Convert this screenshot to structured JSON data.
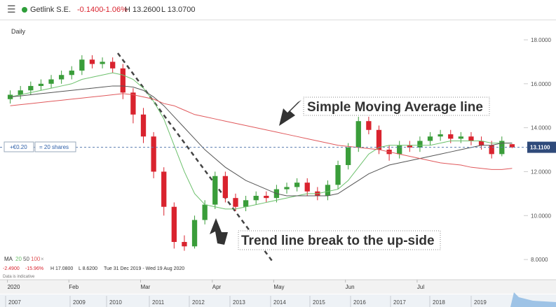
{
  "header": {
    "symbol": "Getlink S.E.",
    "change": "-0.1400",
    "change_pct": "-1.06%",
    "high": "H 13.2600",
    "low": "L 13.0700"
  },
  "chart_data": {
    "type": "candlestick",
    "interval": "Daily",
    "x": [
      0,
      1,
      2,
      3,
      4,
      5,
      6,
      7,
      8,
      9,
      10,
      11,
      12,
      13,
      14,
      15,
      16,
      17,
      18,
      19,
      20,
      21,
      22,
      23,
      24,
      25,
      26,
      27,
      28,
      29,
      30,
      31,
      32,
      33,
      34,
      35,
      36,
      37,
      38,
      39,
      40,
      41,
      42,
      43,
      44,
      45,
      46,
      47,
      48,
      49
    ],
    "open": [
      15.3,
      15.5,
      15.7,
      15.9,
      16.0,
      16.2,
      16.4,
      16.6,
      17.1,
      16.9,
      17.0,
      16.7,
      15.6,
      14.6,
      13.6,
      12.0,
      10.4,
      8.8,
      8.6,
      9.8,
      10.5,
      11.8,
      10.8,
      10.4,
      10.7,
      10.9,
      10.8,
      11.2,
      11.3,
      11.5,
      11.1,
      10.9,
      11.4,
      12.3,
      13.1,
      14.3,
      13.9,
      13.0,
      12.8,
      13.2,
      13.1,
      13.4,
      13.6,
      13.7,
      13.5,
      13.6,
      13.4,
      13.2,
      12.8,
      13.25
    ],
    "high": [
      15.7,
      15.9,
      16.1,
      16.2,
      16.4,
      16.6,
      16.8,
      17.3,
      17.3,
      17.2,
      17.2,
      16.9,
      15.8,
      14.9,
      13.8,
      12.2,
      10.6,
      9.1,
      10.0,
      10.7,
      12.0,
      12.0,
      11.0,
      10.9,
      11.1,
      11.1,
      11.4,
      11.5,
      11.7,
      11.7,
      11.3,
      11.6,
      12.5,
      13.3,
      14.5,
      14.5,
      14.1,
      13.2,
      13.4,
      13.4,
      13.6,
      13.8,
      13.9,
      13.9,
      13.8,
      13.8,
      13.6,
      13.4,
      13.6,
      13.26
    ],
    "low": [
      15.1,
      15.3,
      15.5,
      15.7,
      15.8,
      16.0,
      16.2,
      16.4,
      16.7,
      16.7,
      16.5,
      15.3,
      14.2,
      13.3,
      11.7,
      10.0,
      8.5,
      8.4,
      8.5,
      9.6,
      10.3,
      10.6,
      10.2,
      10.2,
      10.5,
      10.6,
      10.6,
      11.0,
      11.1,
      10.9,
      10.7,
      10.7,
      11.2,
      12.1,
      12.9,
      13.7,
      12.8,
      12.5,
      12.6,
      12.9,
      12.9,
      13.2,
      13.4,
      13.3,
      13.3,
      13.2,
      13.0,
      12.6,
      12.7,
      13.07
    ],
    "close": [
      15.5,
      15.7,
      15.9,
      16.0,
      16.2,
      16.4,
      16.6,
      17.1,
      16.9,
      17.0,
      16.7,
      15.6,
      14.6,
      13.6,
      12.0,
      10.4,
      8.8,
      8.6,
      9.8,
      10.5,
      11.8,
      10.8,
      10.4,
      10.7,
      10.9,
      10.8,
      11.2,
      11.3,
      11.5,
      11.1,
      10.9,
      11.4,
      12.3,
      13.1,
      14.3,
      13.9,
      13.0,
      12.8,
      13.2,
      13.1,
      13.4,
      13.6,
      13.7,
      13.5,
      13.6,
      13.4,
      13.2,
      12.8,
      13.4,
      13.11
    ],
    "up_color": "#3a9d3a",
    "down_color": "#d9232e",
    "last_price_label": "13.1100",
    "last_price_color": "#2f4a7a",
    "moving_averages": [
      {
        "name": "20",
        "color": "#6cc06c",
        "values": [
          15.4,
          15.5,
          15.6,
          15.7,
          15.8,
          15.9,
          16.0,
          16.2,
          16.3,
          16.4,
          16.5,
          16.4,
          16.2,
          15.8,
          15.2,
          14.4,
          13.2,
          12.0,
          11.0,
          10.5,
          10.4,
          10.3,
          10.3,
          10.4,
          10.5,
          10.6,
          10.7,
          10.8,
          10.9,
          11.0,
          11.0,
          11.1,
          11.2,
          11.6,
          12.2,
          12.8,
          13.1,
          13.2,
          13.2,
          13.2,
          13.2,
          13.2,
          13.3,
          13.4,
          13.4,
          13.4,
          13.4,
          13.3,
          13.3,
          13.3
        ]
      },
      {
        "name": "50",
        "color": "#555555",
        "values": [
          15.4,
          15.45,
          15.5,
          15.55,
          15.6,
          15.65,
          15.7,
          15.75,
          15.8,
          15.85,
          15.9,
          15.9,
          15.85,
          15.7,
          15.4,
          15.0,
          14.5,
          14.0,
          13.5,
          13.0,
          12.6,
          12.2,
          11.9,
          11.6,
          11.4,
          11.2,
          11.0,
          10.9,
          10.9,
          10.9,
          10.9,
          10.9,
          11.0,
          11.3,
          11.6,
          11.9,
          12.1,
          12.3,
          12.4,
          12.5,
          12.6,
          12.7,
          12.8,
          12.9,
          13.0,
          13.1,
          13.2,
          13.2,
          13.3,
          13.3
        ]
      },
      {
        "name": "100",
        "color": "#e0585b",
        "values": [
          15.0,
          15.05,
          15.1,
          15.15,
          15.2,
          15.25,
          15.3,
          15.35,
          15.4,
          15.45,
          15.5,
          15.55,
          15.5,
          15.4,
          15.3,
          15.1,
          15.0,
          14.8,
          14.6,
          14.5,
          14.4,
          14.3,
          14.2,
          14.1,
          14.0,
          13.9,
          13.8,
          13.7,
          13.6,
          13.5,
          13.4,
          13.3,
          13.2,
          13.15,
          13.1,
          13.05,
          13.0,
          12.9,
          12.8,
          12.7,
          12.6,
          12.5,
          12.4,
          12.35,
          12.3,
          12.2,
          12.15,
          12.1,
          12.1,
          12.15
        ]
      }
    ],
    "ma_label": "MA",
    "ma_close": "×",
    "xlim": [
      -1,
      50
    ],
    "xticks": [
      {
        "value": 0,
        "label": "2020"
      },
      {
        "value": 6,
        "label": "Feb"
      },
      {
        "value": 13,
        "label": "Mar"
      },
      {
        "value": 20,
        "label": "Apr"
      },
      {
        "value": 26,
        "label": "May"
      },
      {
        "value": 33,
        "label": "Jun"
      },
      {
        "value": 40,
        "label": "Jul"
      }
    ],
    "ylim": [
      7.24,
      18.54
    ],
    "yticks": [
      {
        "value": 8,
        "label": "8.0000"
      },
      {
        "value": 10,
        "label": "10.0000"
      },
      {
        "value": 12,
        "label": "12.0000"
      },
      {
        "value": 14,
        "label": "14.0000"
      },
      {
        "value": 16,
        "label": "16.0000"
      },
      {
        "value": 18,
        "label": "18.0000"
      }
    ],
    "info": {
      "change": "-2.4900",
      "change_pct": "-15.96%",
      "high": "H 17.0800",
      "low": "L 8.6200",
      "range": "Tue 31 Dec 2019 - Wed 19 Aug 2020",
      "note": "Data is indicative"
    },
    "position": {
      "pnl": "+€0.20",
      "size": "= 20 shares"
    },
    "annotations": [
      "Simple Moving Average line",
      "Trend line break to the up-side"
    ],
    "navigator_years": [
      "2007",
      "2009",
      "2010",
      "2011",
      "2012",
      "2013",
      "2014",
      "2015",
      "2016",
      "2017",
      "2018",
      "2019"
    ]
  }
}
